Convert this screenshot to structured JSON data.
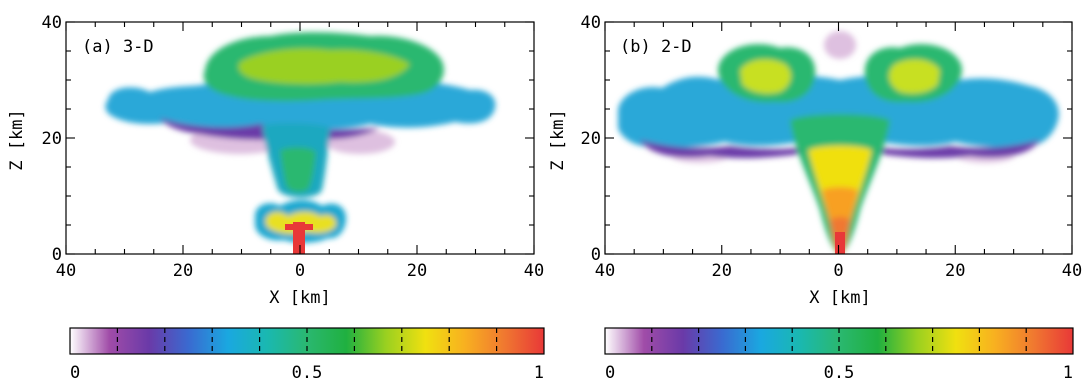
{
  "chart_data": [
    {
      "type": "heatmap",
      "panel_label": "(a) 3-D",
      "xlabel": "X [km]",
      "ylabel": "Z [km]",
      "xlim": [
        -40,
        40
      ],
      "ylim": [
        0,
        40
      ],
      "x_ticks": [
        -40,
        -20,
        0,
        20,
        40
      ],
      "x_tick_labels": [
        "40",
        "20",
        "0",
        "20",
        "40"
      ],
      "y_ticks": [
        0,
        20,
        40
      ],
      "y_tick_labels": [
        "0",
        "20",
        "40"
      ],
      "grid": false
    },
    {
      "type": "heatmap",
      "panel_label": "(b) 2-D",
      "xlabel": "X [km]",
      "ylabel": "Z [km]",
      "xlim": [
        -40,
        40
      ],
      "ylim": [
        0,
        40
      ],
      "x_ticks": [
        -40,
        -20,
        0,
        20,
        40
      ],
      "x_tick_labels": [
        "40",
        "20",
        "0",
        "20",
        "40"
      ],
      "y_ticks": [
        0,
        20,
        40
      ],
      "y_tick_labels": [
        "0",
        "20",
        "40"
      ],
      "grid": false
    }
  ],
  "colorbar": {
    "range": [
      0,
      1
    ],
    "tick_labels": [
      "0",
      "0.5",
      "1"
    ],
    "tick_values": [
      0,
      0.5,
      1
    ],
    "divisions": 10,
    "colors": [
      "#ffffff",
      "#a04ca8",
      "#6a3aa8",
      "#3a6ad0",
      "#1aa8e0",
      "#1ab8b0",
      "#2ab870",
      "#20b040",
      "#9ad020",
      "#f0e010",
      "#f8b020",
      "#f07830",
      "#e83838"
    ]
  }
}
